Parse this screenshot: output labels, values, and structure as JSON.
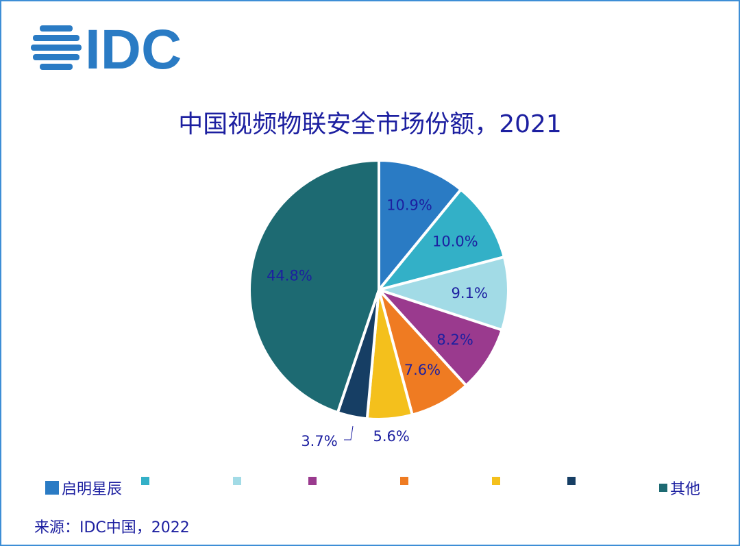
{
  "logo_text": "IDC",
  "chart_data": {
    "type": "pie",
    "title": "中国视频物联安全市场份额，2021",
    "slices": [
      {
        "name": "启明星辰",
        "value": 10.9,
        "label": "10.9%",
        "color": "#2a7bc4"
      },
      {
        "name": "",
        "value": 10.0,
        "label": "10.0%",
        "color": "#33b0c7"
      },
      {
        "name": "",
        "value": 9.1,
        "label": "9.1%",
        "color": "#a2dbe6"
      },
      {
        "name": "",
        "value": 8.2,
        "label": "8.2%",
        "color": "#9a3a8e"
      },
      {
        "name": "",
        "value": 7.6,
        "label": "7.6%",
        "color": "#ef7b22"
      },
      {
        "name": "",
        "value": 5.6,
        "label": "5.6%",
        "color": "#f4c01c"
      },
      {
        "name": "",
        "value": 3.7,
        "label": "3.7%",
        "color": "#163e64"
      },
      {
        "name": "其他",
        "value": 44.8,
        "label": "44.8%",
        "color": "#1d6a72"
      }
    ],
    "start": "top",
    "direction": "clockwise",
    "legend": "bottom"
  },
  "source": "来源：IDC中国，2022"
}
